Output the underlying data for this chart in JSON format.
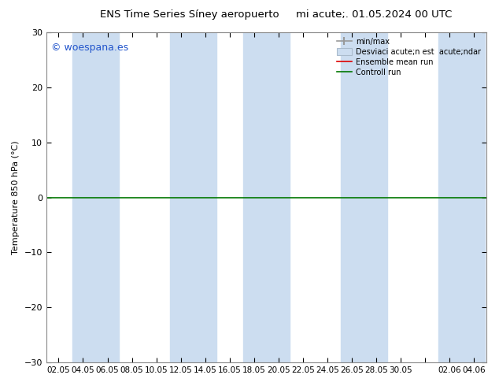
{
  "title_left": "ENS Time Series Síney aeropuerto",
  "title_right": "mi acute;. 01.05.2024 00 UTC",
  "ylabel": "Temperature 850 hPa (°C)",
  "ylim": [
    -30,
    30
  ],
  "yticks": [
    -30,
    -20,
    -10,
    0,
    10,
    20,
    30
  ],
  "xtick_labels": [
    "02.05",
    "04.05",
    "06.05",
    "08.05",
    "10.05",
    "12.05",
    "14.05",
    "16.05",
    "18.05",
    "20.05",
    "22.05",
    "24.05",
    "26.05",
    "28.05",
    "30.05",
    "",
    "02.06",
    "04.06"
  ],
  "watermark": "© woespana.es",
  "bg_color": "#ffffff",
  "plot_bg_color": "#ffffff",
  "band_color": "#ccddf0",
  "zero_line_color": "#007700",
  "band_indices": [
    1,
    5,
    8,
    16
  ],
  "fig_width": 6.34,
  "fig_height": 4.9,
  "dpi": 100
}
